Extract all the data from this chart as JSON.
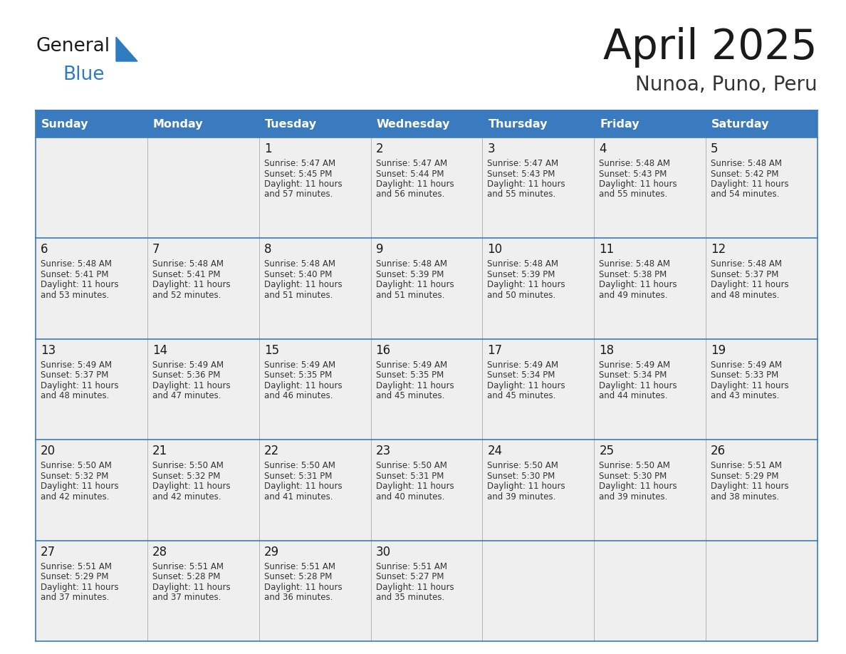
{
  "title": "April 2025",
  "subtitle": "Nunoa, Puno, Peru",
  "header_color": "#3a7bbf",
  "header_text_color": "#ffffff",
  "cell_bg_color": "#efefef",
  "border_color": "#3a7bbf",
  "thin_line_color": "#aaaaaa",
  "day_names": [
    "Sunday",
    "Monday",
    "Tuesday",
    "Wednesday",
    "Thursday",
    "Friday",
    "Saturday"
  ],
  "title_color": "#1a1a1a",
  "subtitle_color": "#333333",
  "day_number_color": "#1a1a1a",
  "cell_text_color": "#333333",
  "logo_black": "#1a1a1a",
  "logo_blue": "#2e7bbf",
  "logo_triangle": "#2e7bbf",
  "calendar": [
    [
      {
        "day": "",
        "sunrise": "",
        "sunset": "",
        "daylight_min": ""
      },
      {
        "day": "",
        "sunrise": "",
        "sunset": "",
        "daylight_min": ""
      },
      {
        "day": "1",
        "sunrise": "5:47 AM",
        "sunset": "5:45 PM",
        "daylight_min": "57 minutes."
      },
      {
        "day": "2",
        "sunrise": "5:47 AM",
        "sunset": "5:44 PM",
        "daylight_min": "56 minutes."
      },
      {
        "day": "3",
        "sunrise": "5:47 AM",
        "sunset": "5:43 PM",
        "daylight_min": "55 minutes."
      },
      {
        "day": "4",
        "sunrise": "5:48 AM",
        "sunset": "5:43 PM",
        "daylight_min": "55 minutes."
      },
      {
        "day": "5",
        "sunrise": "5:48 AM",
        "sunset": "5:42 PM",
        "daylight_min": "54 minutes."
      }
    ],
    [
      {
        "day": "6",
        "sunrise": "5:48 AM",
        "sunset": "5:41 PM",
        "daylight_min": "53 minutes."
      },
      {
        "day": "7",
        "sunrise": "5:48 AM",
        "sunset": "5:41 PM",
        "daylight_min": "52 minutes."
      },
      {
        "day": "8",
        "sunrise": "5:48 AM",
        "sunset": "5:40 PM",
        "daylight_min": "51 minutes."
      },
      {
        "day": "9",
        "sunrise": "5:48 AM",
        "sunset": "5:39 PM",
        "daylight_min": "51 minutes."
      },
      {
        "day": "10",
        "sunrise": "5:48 AM",
        "sunset": "5:39 PM",
        "daylight_min": "50 minutes."
      },
      {
        "day": "11",
        "sunrise": "5:48 AM",
        "sunset": "5:38 PM",
        "daylight_min": "49 minutes."
      },
      {
        "day": "12",
        "sunrise": "5:48 AM",
        "sunset": "5:37 PM",
        "daylight_min": "48 minutes."
      }
    ],
    [
      {
        "day": "13",
        "sunrise": "5:49 AM",
        "sunset": "5:37 PM",
        "daylight_min": "48 minutes."
      },
      {
        "day": "14",
        "sunrise": "5:49 AM",
        "sunset": "5:36 PM",
        "daylight_min": "47 minutes."
      },
      {
        "day": "15",
        "sunrise": "5:49 AM",
        "sunset": "5:35 PM",
        "daylight_min": "46 minutes."
      },
      {
        "day": "16",
        "sunrise": "5:49 AM",
        "sunset": "5:35 PM",
        "daylight_min": "45 minutes."
      },
      {
        "day": "17",
        "sunrise": "5:49 AM",
        "sunset": "5:34 PM",
        "daylight_min": "45 minutes."
      },
      {
        "day": "18",
        "sunrise": "5:49 AM",
        "sunset": "5:34 PM",
        "daylight_min": "44 minutes."
      },
      {
        "day": "19",
        "sunrise": "5:49 AM",
        "sunset": "5:33 PM",
        "daylight_min": "43 minutes."
      }
    ],
    [
      {
        "day": "20",
        "sunrise": "5:50 AM",
        "sunset": "5:32 PM",
        "daylight_min": "42 minutes."
      },
      {
        "day": "21",
        "sunrise": "5:50 AM",
        "sunset": "5:32 PM",
        "daylight_min": "42 minutes."
      },
      {
        "day": "22",
        "sunrise": "5:50 AM",
        "sunset": "5:31 PM",
        "daylight_min": "41 minutes."
      },
      {
        "day": "23",
        "sunrise": "5:50 AM",
        "sunset": "5:31 PM",
        "daylight_min": "40 minutes."
      },
      {
        "day": "24",
        "sunrise": "5:50 AM",
        "sunset": "5:30 PM",
        "daylight_min": "39 minutes."
      },
      {
        "day": "25",
        "sunrise": "5:50 AM",
        "sunset": "5:30 PM",
        "daylight_min": "39 minutes."
      },
      {
        "day": "26",
        "sunrise": "5:51 AM",
        "sunset": "5:29 PM",
        "daylight_min": "38 minutes."
      }
    ],
    [
      {
        "day": "27",
        "sunrise": "5:51 AM",
        "sunset": "5:29 PM",
        "daylight_min": "37 minutes."
      },
      {
        "day": "28",
        "sunrise": "5:51 AM",
        "sunset": "5:28 PM",
        "daylight_min": "37 minutes."
      },
      {
        "day": "29",
        "sunrise": "5:51 AM",
        "sunset": "5:28 PM",
        "daylight_min": "36 minutes."
      },
      {
        "day": "30",
        "sunrise": "5:51 AM",
        "sunset": "5:27 PM",
        "daylight_min": "35 minutes."
      },
      {
        "day": "",
        "sunrise": "",
        "sunset": "",
        "daylight_min": ""
      },
      {
        "day": "",
        "sunrise": "",
        "sunset": "",
        "daylight_min": ""
      },
      {
        "day": "",
        "sunrise": "",
        "sunset": "",
        "daylight_min": ""
      }
    ]
  ]
}
